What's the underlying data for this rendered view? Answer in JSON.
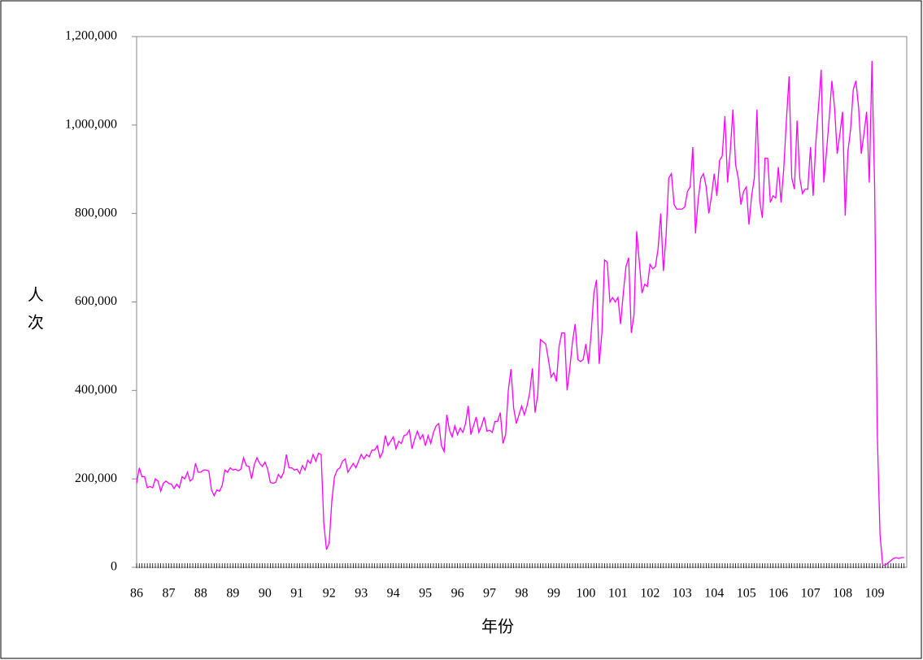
{
  "chart_data": {
    "type": "line",
    "ylabel": "人次",
    "xlabel": "年份",
    "categories": [
      "86",
      null,
      null,
      null,
      null,
      null,
      null,
      null,
      null,
      null,
      null,
      null,
      "87",
      null,
      null,
      null,
      null,
      null,
      null,
      null,
      null,
      null,
      null,
      null,
      "88",
      null,
      null,
      null,
      null,
      null,
      null,
      null,
      null,
      null,
      null,
      null,
      "89",
      null,
      null,
      null,
      null,
      null,
      null,
      null,
      null,
      null,
      null,
      null,
      "90",
      null,
      null,
      null,
      null,
      null,
      null,
      null,
      null,
      null,
      null,
      null,
      "91",
      null,
      null,
      null,
      null,
      null,
      null,
      null,
      null,
      null,
      null,
      null,
      "92",
      null,
      null,
      null,
      null,
      null,
      null,
      null,
      null,
      null,
      null,
      null,
      "93",
      null,
      null,
      null,
      null,
      null,
      null,
      null,
      null,
      null,
      null,
      null,
      "94",
      null,
      null,
      null,
      null,
      null,
      null,
      null,
      null,
      null,
      null,
      null,
      "95",
      null,
      null,
      null,
      null,
      null,
      null,
      null,
      null,
      null,
      null,
      null,
      "96",
      null,
      null,
      null,
      null,
      null,
      null,
      null,
      null,
      null,
      null,
      null,
      "97",
      null,
      null,
      null,
      null,
      null,
      null,
      null,
      null,
      null,
      null,
      null,
      "98",
      null,
      null,
      null,
      null,
      null,
      null,
      null,
      null,
      null,
      null,
      null,
      "99",
      null,
      null,
      null,
      null,
      null,
      null,
      null,
      null,
      null,
      null,
      null,
      "100",
      null,
      null,
      null,
      null,
      null,
      null,
      null,
      null,
      null,
      null,
      null,
      "101",
      null,
      null,
      null,
      null,
      null,
      null,
      null,
      null,
      null,
      null,
      null,
      "102",
      null,
      null,
      null,
      null,
      null,
      null,
      null,
      null,
      null,
      null,
      null,
      "103",
      null,
      null,
      null,
      null,
      null,
      null,
      null,
      null,
      null,
      null,
      null,
      "104",
      null,
      null,
      null,
      null,
      null,
      null,
      null,
      null,
      null,
      null,
      null,
      "105",
      null,
      null,
      null,
      null,
      null,
      null,
      null,
      null,
      null,
      null,
      null,
      "106",
      null,
      null,
      null,
      null,
      null,
      null,
      null,
      null,
      null,
      null,
      null,
      "107",
      null,
      null,
      null,
      null,
      null,
      null,
      null,
      null,
      null,
      null,
      null,
      "108",
      null,
      null,
      null,
      null,
      null,
      null,
      null,
      null,
      null,
      null,
      null,
      "109",
      null,
      null,
      null,
      null,
      null,
      null,
      null,
      null,
      null,
      null,
      null
    ],
    "values": [
      190000,
      225000,
      205000,
      205000,
      180000,
      183000,
      180000,
      200000,
      195000,
      172000,
      190000,
      195000,
      190000,
      188000,
      178000,
      188000,
      180000,
      205000,
      200000,
      215000,
      195000,
      200000,
      235000,
      215000,
      215000,
      220000,
      220000,
      218000,
      175000,
      162000,
      175000,
      172000,
      185000,
      220000,
      215000,
      225000,
      220000,
      222000,
      218000,
      222000,
      248000,
      230000,
      228000,
      200000,
      232000,
      248000,
      235000,
      228000,
      238000,
      222000,
      192000,
      190000,
      192000,
      210000,
      202000,
      215000,
      255000,
      225000,
      225000,
      220000,
      222000,
      212000,
      230000,
      220000,
      242000,
      235000,
      255000,
      240000,
      258000,
      255000,
      100000,
      40000,
      55000,
      150000,
      205000,
      220000,
      225000,
      240000,
      245000,
      215000,
      225000,
      235000,
      225000,
      240000,
      255000,
      245000,
      255000,
      250000,
      265000,
      265000,
      275000,
      248000,
      260000,
      298000,
      275000,
      285000,
      295000,
      268000,
      285000,
      280000,
      298000,
      300000,
      310000,
      268000,
      290000,
      308000,
      290000,
      300000,
      275000,
      298000,
      280000,
      305000,
      320000,
      325000,
      275000,
      262000,
      345000,
      310000,
      295000,
      320000,
      300000,
      315000,
      305000,
      325000,
      365000,
      300000,
      320000,
      340000,
      305000,
      320000,
      340000,
      308000,
      310000,
      305000,
      330000,
      330000,
      350000,
      280000,
      300000,
      400000,
      448000,
      360000,
      325000,
      345000,
      365000,
      345000,
      365000,
      395000,
      450000,
      350000,
      390000,
      515000,
      510000,
      505000,
      470000,
      430000,
      440000,
      420000,
      500000,
      530000,
      530000,
      400000,
      450000,
      510000,
      550000,
      470000,
      465000,
      470000,
      505000,
      460000,
      530000,
      620000,
      650000,
      460000,
      530000,
      695000,
      690000,
      600000,
      610000,
      600000,
      610000,
      550000,
      620000,
      680000,
      700000,
      530000,
      570000,
      760000,
      690000,
      620000,
      640000,
      635000,
      685000,
      675000,
      680000,
      720000,
      800000,
      670000,
      750000,
      880000,
      890000,
      820000,
      810000,
      810000,
      810000,
      815000,
      850000,
      860000,
      950000,
      755000,
      830000,
      880000,
      890000,
      860000,
      800000,
      840000,
      890000,
      840000,
      920000,
      930000,
      1020000,
      870000,
      940000,
      1035000,
      910000,
      880000,
      820000,
      850000,
      860000,
      775000,
      840000,
      880000,
      1035000,
      830000,
      790000,
      925000,
      925000,
      825000,
      840000,
      835000,
      905000,
      825000,
      900000,
      1010000,
      1110000,
      880000,
      855000,
      1010000,
      880000,
      845000,
      855000,
      855000,
      950000,
      840000,
      960000,
      1040000,
      1125000,
      870000,
      940000,
      1015000,
      1100000,
      1040000,
      935000,
      980000,
      1030000,
      795000,
      940000,
      990000,
      1080000,
      1100000,
      1040000,
      935000,
      980000,
      1030000,
      870000,
      1145000,
      860000,
      300000,
      75000,
      5000,
      5000,
      10000,
      15000,
      20000,
      22000,
      20000,
      22000,
      22000
    ],
    "color": "#ff00ff",
    "ylim": [
      0,
      1200000
    ],
    "yticks": [
      0,
      {
        "value": 200000,
        "label": "200,000"
      },
      {
        "value": 400000,
        "label": "400,000"
      },
      {
        "value": 600000,
        "label": "600,000"
      },
      {
        "value": 800000,
        "label": "800,000"
      },
      {
        "value": 1000000,
        "label": "1,000,000"
      },
      {
        "value": 1200000,
        "label": "1,200,000"
      }
    ],
    "grid": false
  }
}
